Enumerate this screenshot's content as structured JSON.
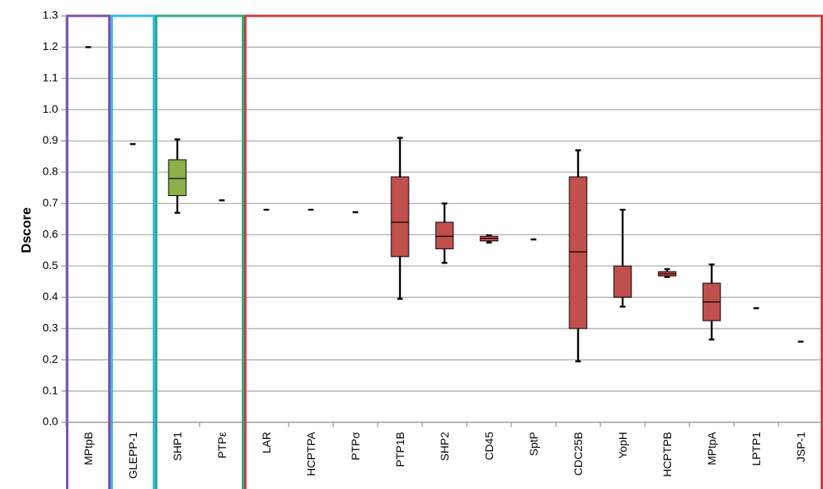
{
  "chart_data": {
    "type": "box",
    "title": "",
    "xlabel": "",
    "ylabel": "Dscore",
    "ylim": [
      0,
      1.3
    ],
    "y_ticks": [
      "0.0",
      "0.1",
      "0.2",
      "0.3",
      "0.4",
      "0.5",
      "0.6",
      "0.7",
      "0.8",
      "0.9",
      "1.0",
      "1.1",
      "1.2",
      "1.3"
    ],
    "grid": true,
    "categories": [
      "MPtpB",
      "GLEPP-1",
      "SHP1",
      "PTPε",
      "LAR",
      "HCPTPA",
      "PTPσ",
      "PTP1B",
      "SHP2",
      "CD45",
      "SptP",
      "CDC25B",
      "YopH",
      "HCPTPB",
      "MPtpA",
      "LPTP1",
      "JSP-1"
    ],
    "boxes": [
      {
        "category": "MPtpB",
        "single": 1.2
      },
      {
        "category": "GLEPP-1",
        "single": 0.89
      },
      {
        "category": "SHP1",
        "min": 0.67,
        "q1": 0.725,
        "median": 0.78,
        "q3": 0.84,
        "max": 0.905
      },
      {
        "category": "PTPε",
        "single": 0.71
      },
      {
        "category": "LAR",
        "single": 0.68
      },
      {
        "category": "HCPTPA",
        "single": 0.68
      },
      {
        "category": "PTPσ",
        "single": 0.672
      },
      {
        "category": "PTP1B",
        "min": 0.395,
        "q1": 0.53,
        "median": 0.64,
        "q3": 0.785,
        "max": 0.91
      },
      {
        "category": "SHP2",
        "min": 0.51,
        "q1": 0.555,
        "median": 0.595,
        "q3": 0.64,
        "max": 0.7
      },
      {
        "category": "CD45",
        "min": 0.575,
        "q1": 0.58,
        "median": 0.588,
        "q3": 0.595,
        "max": 0.598
      },
      {
        "category": "SptP",
        "single": 0.585
      },
      {
        "category": "CDC25B",
        "min": 0.195,
        "q1": 0.3,
        "median": 0.545,
        "q3": 0.785,
        "max": 0.87
      },
      {
        "category": "YopH",
        "min": 0.37,
        "q1": 0.4,
        "median": 0.4,
        "q3": 0.5,
        "max": 0.68
      },
      {
        "category": "HCPTPB",
        "min": 0.465,
        "q1": 0.468,
        "median": 0.475,
        "q3": 0.482,
        "max": 0.49
      },
      {
        "category": "MPtpA",
        "min": 0.265,
        "q1": 0.325,
        "median": 0.385,
        "q3": 0.445,
        "max": 0.505
      },
      {
        "category": "LPTP1",
        "single": 0.365
      },
      {
        "category": "JSP-1",
        "single": 0.258
      }
    ],
    "groups": [
      {
        "members": [
          "MPtpB"
        ],
        "color": "#7d4fb3"
      },
      {
        "members": [
          "GLEPP-1"
        ],
        "color": "#39b6ec"
      },
      {
        "members": [
          "SHP1",
          "PTPε"
        ],
        "color": "#2bb07a"
      },
      {
        "members": [
          "LAR",
          "HCPTPA",
          "PTPσ",
          "PTP1B",
          "SHP2",
          "CD45",
          "SptP",
          "CDC25B",
          "YopH",
          "HCPTPB",
          "MPtpA",
          "LPTP1",
          "JSP-1"
        ],
        "color": "#d63a3a"
      }
    ],
    "box_colors": {
      "SHP1": "#8db04a",
      "default": "#c0504d"
    }
  }
}
